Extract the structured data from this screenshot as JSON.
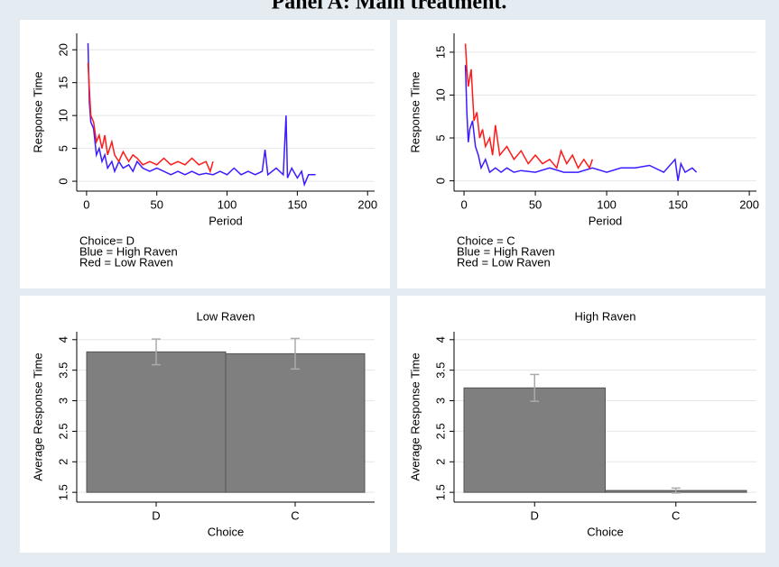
{
  "title": "Panel A: Main treatment.",
  "chart_data": [
    {
      "type": "line",
      "xlabel": "Period",
      "ylabel": "Response Time",
      "annotations": [
        "Choice= D",
        "Blue = High Raven",
        "Red = Low Raven"
      ],
      "xlim": [
        -7,
        205
      ],
      "xticks": [
        0,
        50,
        100,
        150,
        200
      ],
      "ylim": [
        -1.5,
        22.5
      ],
      "yticks": [
        0,
        5,
        10,
        15,
        20
      ],
      "grid": true,
      "series": [
        {
          "color": "#3a1cff",
          "x": [
            1,
            2,
            3,
            5,
            7,
            9,
            11,
            13,
            15,
            18,
            20,
            23,
            26,
            30,
            33,
            36,
            40,
            45,
            50,
            55,
            60,
            65,
            70,
            75,
            80,
            85,
            90,
            95,
            100,
            105,
            110,
            115,
            120,
            125,
            127,
            129,
            135,
            140,
            142,
            143,
            146,
            150,
            153,
            155,
            158,
            163
          ],
          "values": [
            21,
            12,
            9,
            8,
            4,
            5,
            3,
            4,
            2,
            3,
            1.5,
            3,
            2,
            2.5,
            1.5,
            3,
            2,
            1.5,
            2,
            1.5,
            1,
            1.5,
            1,
            1.5,
            1,
            1.2,
            1,
            1.5,
            1,
            2,
            1,
            1.5,
            1,
            1.5,
            4.8,
            1,
            2,
            1,
            10,
            0.5,
            2,
            0.5,
            1.5,
            -0.5,
            1,
            1
          ]
        },
        {
          "color": "#ff1a1a",
          "x": [
            1,
            2,
            3,
            5,
            7,
            9,
            11,
            13,
            15,
            18,
            20,
            23,
            26,
            30,
            33,
            36,
            40,
            45,
            50,
            55,
            60,
            65,
            70,
            75,
            80,
            85,
            88,
            90
          ],
          "values": [
            18,
            14,
            10,
            9,
            6,
            7,
            5,
            7,
            4,
            6,
            4,
            3,
            4.5,
            3,
            4,
            3.5,
            2.5,
            3,
            2.5,
            3.5,
            2.5,
            3,
            2.5,
            3.5,
            2.5,
            3,
            1.5,
            3
          ]
        }
      ]
    },
    {
      "type": "line",
      "xlabel": "Period",
      "ylabel": "Response Time",
      "annotations": [
        "Choice = C",
        "Blue = High Raven",
        "Red = Low Raven"
      ],
      "xlim": [
        -7,
        205
      ],
      "xticks": [
        0,
        50,
        100,
        150,
        200
      ],
      "ylim": [
        -1.2,
        17.2
      ],
      "yticks": [
        0,
        5,
        10,
        15
      ],
      "grid": true,
      "series": [
        {
          "color": "#3a1cff",
          "x": [
            1,
            2,
            3,
            4,
            6,
            8,
            10,
            12,
            15,
            18,
            22,
            26,
            30,
            35,
            40,
            50,
            60,
            70,
            80,
            90,
            100,
            110,
            120,
            130,
            140,
            148,
            150,
            152,
            155,
            160,
            163
          ],
          "values": [
            13.5,
            8,
            4.5,
            6,
            7,
            4,
            3,
            1.5,
            2.5,
            1,
            1.5,
            1,
            1.5,
            1,
            1.2,
            1,
            1.5,
            1,
            1,
            1.5,
            1,
            1.5,
            1.5,
            1.8,
            1,
            2.5,
            0,
            2,
            1,
            1.5,
            1
          ]
        },
        {
          "color": "#ff1a1a",
          "x": [
            1,
            2,
            3,
            5,
            7,
            9,
            11,
            13,
            15,
            18,
            20,
            22,
            25,
            30,
            35,
            40,
            45,
            50,
            55,
            60,
            65,
            68,
            72,
            76,
            80,
            84,
            88,
            90
          ],
          "values": [
            16,
            13,
            11,
            13,
            7,
            8,
            5,
            6,
            4,
            5,
            3,
            6.5,
            3,
            4,
            2.5,
            3.5,
            2,
            3,
            2,
            2.5,
            1.5,
            3.5,
            2,
            3,
            1.5,
            2.5,
            1.5,
            2.5
          ]
        }
      ]
    },
    {
      "type": "bar",
      "title": "Low Raven",
      "xlabel": "Choice",
      "ylabel": "Average Response Time",
      "categories": [
        "D",
        "C"
      ],
      "values": [
        3.8,
        3.77
      ],
      "errors": [
        0.21,
        0.25
      ],
      "color": "#7f7f7f",
      "ylim": [
        1.34,
        4.13
      ],
      "yticks": [
        1.5,
        2,
        2.5,
        3,
        3.5,
        4
      ],
      "grid": true
    },
    {
      "type": "bar",
      "title": "High Raven",
      "xlabel": "Choice",
      "ylabel": "Average Response Time",
      "categories": [
        "D",
        "C"
      ],
      "values": [
        3.21,
        1.53
      ],
      "errors": [
        0.22,
        0.04
      ],
      "color": "#7f7f7f",
      "ylim": [
        1.34,
        4.13
      ],
      "yticks": [
        1.5,
        2,
        2.5,
        3,
        3.5,
        4
      ],
      "grid": true
    }
  ]
}
